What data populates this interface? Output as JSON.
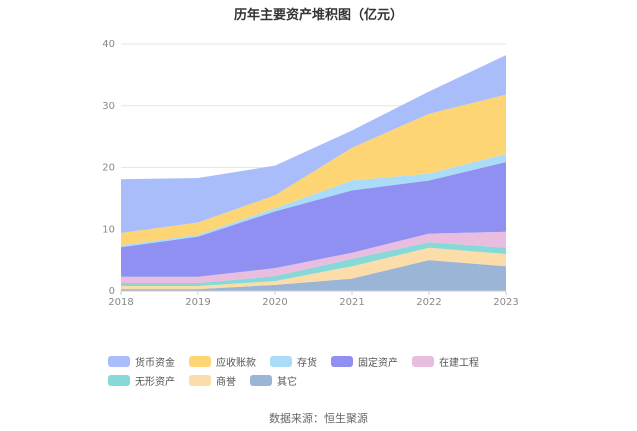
{
  "chart_data": {
    "type": "area",
    "stacked": true,
    "title": "历年主要资产堆积图（亿元）",
    "x": [
      "2018",
      "2019",
      "2020",
      "2021",
      "2022",
      "2023"
    ],
    "ylim": [
      0,
      40
    ],
    "yticks": [
      0,
      10,
      20,
      30,
      40
    ],
    "grid": true,
    "legend_position": "bottom",
    "series": [
      {
        "name": "其它",
        "color": "#9bb5d6",
        "values": [
          0.3,
          0.3,
          1.0,
          2.0,
          5.0,
          4.0
        ]
      },
      {
        "name": "商誉",
        "color": "#fcdca8",
        "values": [
          0.5,
          0.5,
          0.6,
          2.0,
          2.0,
          2.0
        ]
      },
      {
        "name": "无形资产",
        "color": "#87d9d8",
        "values": [
          0.5,
          0.5,
          0.8,
          1.2,
          0.9,
          1.0
        ]
      },
      {
        "name": "在建工程",
        "color": "#e8bde0",
        "values": [
          1.0,
          1.0,
          1.3,
          1.0,
          1.4,
          2.6
        ]
      },
      {
        "name": "固定资产",
        "color": "#8f90f2",
        "values": [
          4.8,
          6.5,
          9.2,
          10.1,
          8.6,
          11.3
        ]
      },
      {
        "name": "存货",
        "color": "#aadcf7",
        "values": [
          0.3,
          0.3,
          0.5,
          1.6,
          1.1,
          1.3
        ]
      },
      {
        "name": "应收账款",
        "color": "#fdd574",
        "values": [
          2.0,
          2.0,
          2.1,
          5.3,
          9.7,
          9.6
        ]
      },
      {
        "name": "货币资金",
        "color": "#a9bdfb",
        "values": [
          8.7,
          7.2,
          4.8,
          2.8,
          3.6,
          6.4
        ]
      }
    ],
    "legend_order": [
      "货币资金",
      "应收账款",
      "存货",
      "固定资产",
      "在建工程",
      "无形资产",
      "商誉",
      "其它"
    ]
  },
  "source_text": "数据来源：恒生聚源"
}
